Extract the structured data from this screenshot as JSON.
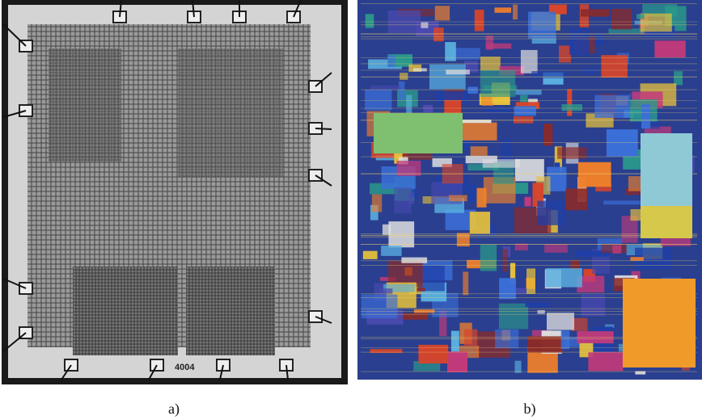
{
  "panels": [
    {
      "label": "a)",
      "chip_marking": "4004"
    },
    {
      "label": "b)"
    }
  ]
}
